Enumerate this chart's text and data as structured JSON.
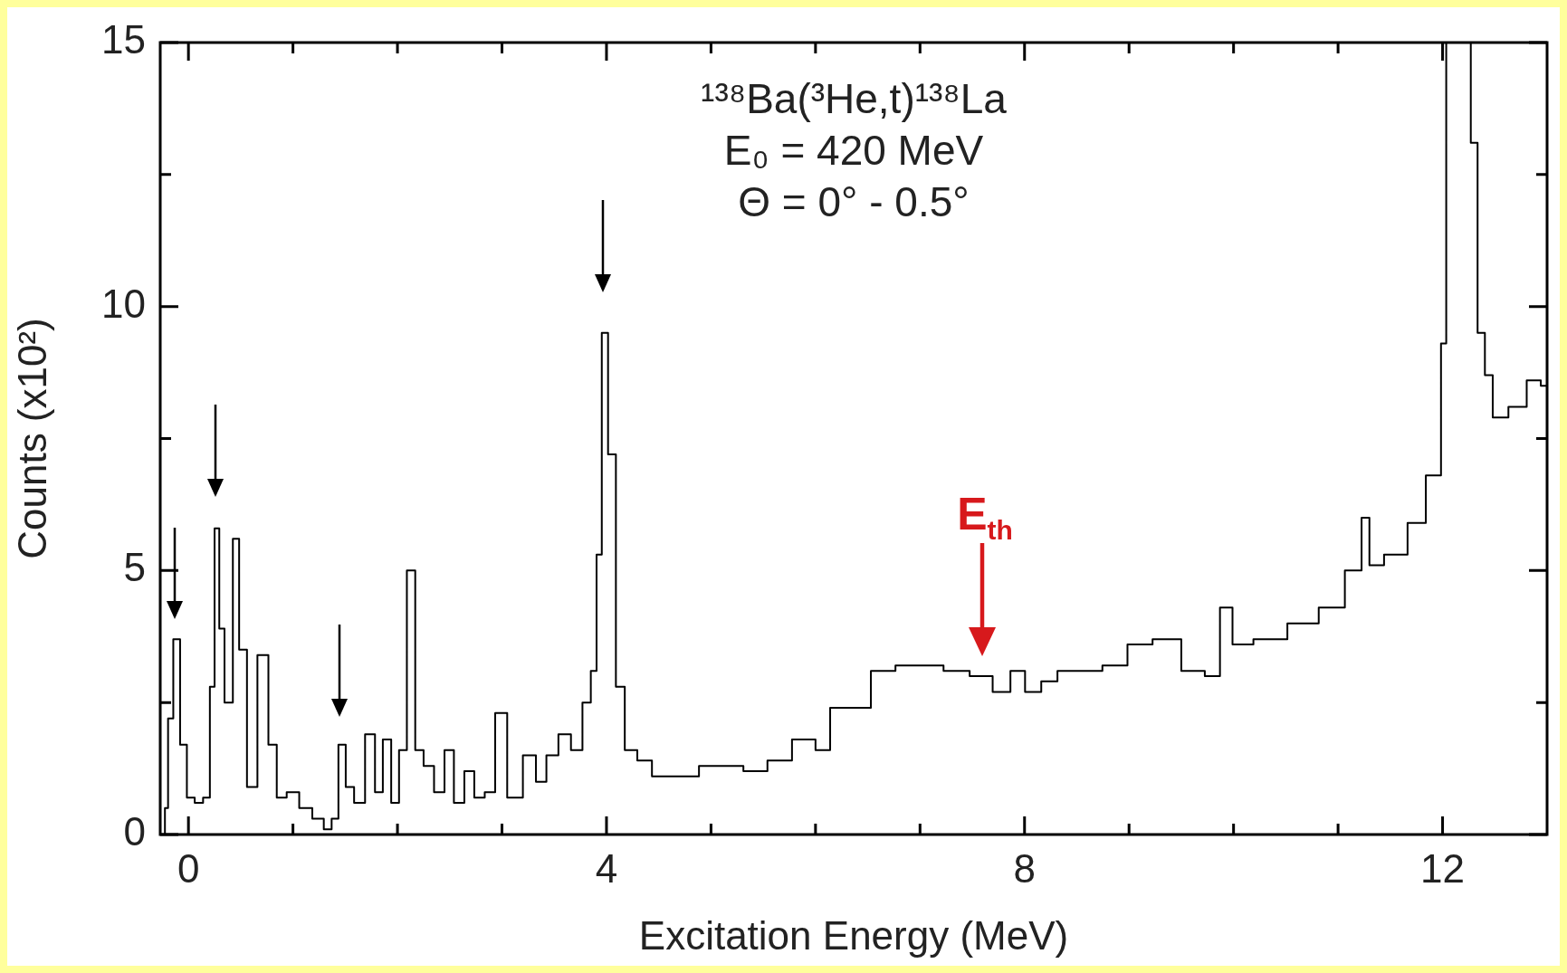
{
  "chart_data": {
    "type": "step",
    "xlabel": "Excitation Energy (MeV)",
    "ylabel": "Counts (x10²)",
    "annotations": [
      "¹³⁸Ba(³He,t)¹³⁸La",
      "E₀ = 420 MeV",
      "Θ = 0° - 0.5°",
      "E$_{th}$"
    ],
    "x": [
      -0.24,
      -0.21,
      -0.18,
      -0.11,
      -0.05,
      0.02,
      0.1,
      0.18,
      0.23,
      0.27,
      0.32,
      0.37,
      0.4,
      0.45,
      0.52,
      0.6,
      0.72,
      0.81,
      0.88,
      1.0,
      1.12,
      1.25,
      1.34,
      1.4,
      1.47,
      1.54,
      1.63,
      1.75,
      1.82,
      1.9,
      1.98,
      2.05,
      2.13,
      2.21,
      2.29,
      2.41,
      2.49,
      2.59,
      2.69,
      2.78,
      2.89,
      2.98,
      3.12,
      3.28,
      3.37,
      3.48,
      3.6,
      3.72,
      3.82,
      3.88,
      3.93,
      3.98,
      4.05,
      4.13,
      4.22,
      4.37,
      4.5,
      4.77,
      5.0,
      5.19,
      5.43,
      5.65,
      5.9,
      6.1,
      6.18,
      6.42,
      6.64,
      6.89,
      7.1,
      7.35,
      7.6,
      7.79,
      7.94,
      8.07,
      8.25,
      8.38,
      8.62,
      8.87,
      9.1,
      9.35,
      9.65,
      9.8,
      9.94,
      10.04,
      10.34,
      10.69,
      10.94,
      11.19,
      11.26,
      11.34,
      11.54,
      11.79,
      11.89,
      11.96,
      12.01,
      12.06,
      12.25,
      12.29,
      12.38,
      12.43,
      12.53,
      12.73,
      12.88,
      13.0
    ],
    "series": [
      {
        "color": "#000000",
        "values": [
          0,
          0.5,
          2.2,
          3.7,
          1.7,
          0.7,
          0.6,
          0.7,
          2.8,
          5.8,
          3.9,
          2.5,
          2.5,
          5.6,
          3.5,
          0.9,
          3.4,
          1.7,
          0.7,
          0.8,
          0.5,
          0.3,
          0.1,
          0.3,
          1.7,
          0.9,
          0.6,
          1.9,
          0.8,
          1.8,
          0.6,
          1.6,
          5.0,
          1.6,
          1.3,
          0.8,
          1.6,
          0.6,
          1.2,
          0.7,
          0.8,
          2.3,
          0.7,
          1.5,
          1.0,
          1.5,
          1.9,
          1.6,
          2.5,
          3.1,
          5.3,
          9.5,
          7.2,
          2.8,
          1.6,
          1.4,
          1.1,
          1.1,
          1.3,
          1.3,
          1.2,
          1.4,
          1.8,
          1.6,
          2.4,
          2.4,
          3.1,
          3.2,
          3.2,
          3.1,
          3.0,
          2.7,
          3.1,
          2.7,
          2.9,
          3.1,
          3.1,
          3.2,
          3.6,
          3.7,
          3.1,
          3.0,
          4.3,
          3.6,
          3.7,
          4.0,
          4.3,
          5.0,
          6.0,
          5.1,
          5.3,
          5.9,
          6.8,
          6.8,
          9.3,
          15,
          15,
          13.1,
          9.5,
          8.7,
          7.9,
          8.1,
          8.6,
          8.5
        ]
      }
    ],
    "xlim": [
      -0.27,
      13
    ],
    "xticks": [
      0,
      {
        "value": 1,
        "label": null
      },
      {
        "value": 2,
        "label": null
      },
      {
        "value": 3,
        "label": null
      },
      4,
      {
        "value": 5,
        "label": null
      },
      {
        "value": 6,
        "label": null
      },
      {
        "value": 7,
        "label": null
      },
      8,
      {
        "value": 9,
        "label": null
      },
      {
        "value": 10,
        "label": null
      },
      {
        "value": 11,
        "label": null
      },
      12
    ],
    "ylim": [
      0,
      15
    ],
    "yticks": [
      0,
      {
        "value": 2.5,
        "label": null
      },
      5,
      {
        "value": 7.5,
        "label": null
      },
      10,
      {
        "value": 12.5,
        "label": null
      },
      15
    ],
    "grid": false,
    "legend": false,
    "marker": "none",
    "line_style": "solid"
  }
}
